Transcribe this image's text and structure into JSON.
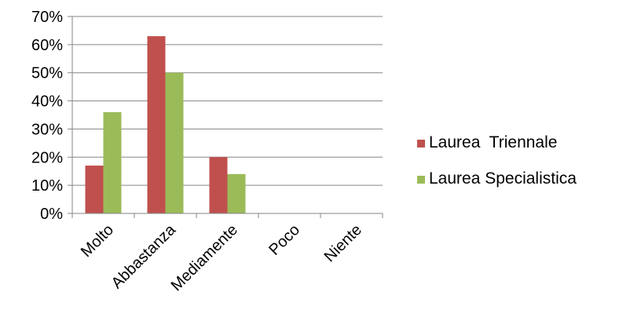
{
  "chart_data": {
    "type": "bar",
    "categories": [
      "Molto",
      "Abbastanza",
      "Mediamente",
      "Poco",
      "Niente"
    ],
    "series": [
      {
        "name": "Laurea  Triennale",
        "color": "#C0504D",
        "values": [
          0.17,
          0.63,
          0.2,
          0,
          0
        ]
      },
      {
        "name": "Laurea Specialistica",
        "color": "#9BBB59",
        "values": [
          0.36,
          0.5,
          0.14,
          0,
          0
        ]
      }
    ],
    "yticks": [
      "0%",
      "10%",
      "20%",
      "30%",
      "40%",
      "50%",
      "60%",
      "70%"
    ],
    "ylim": [
      0,
      0.7
    ],
    "grid": true,
    "legend_position": "right"
  }
}
